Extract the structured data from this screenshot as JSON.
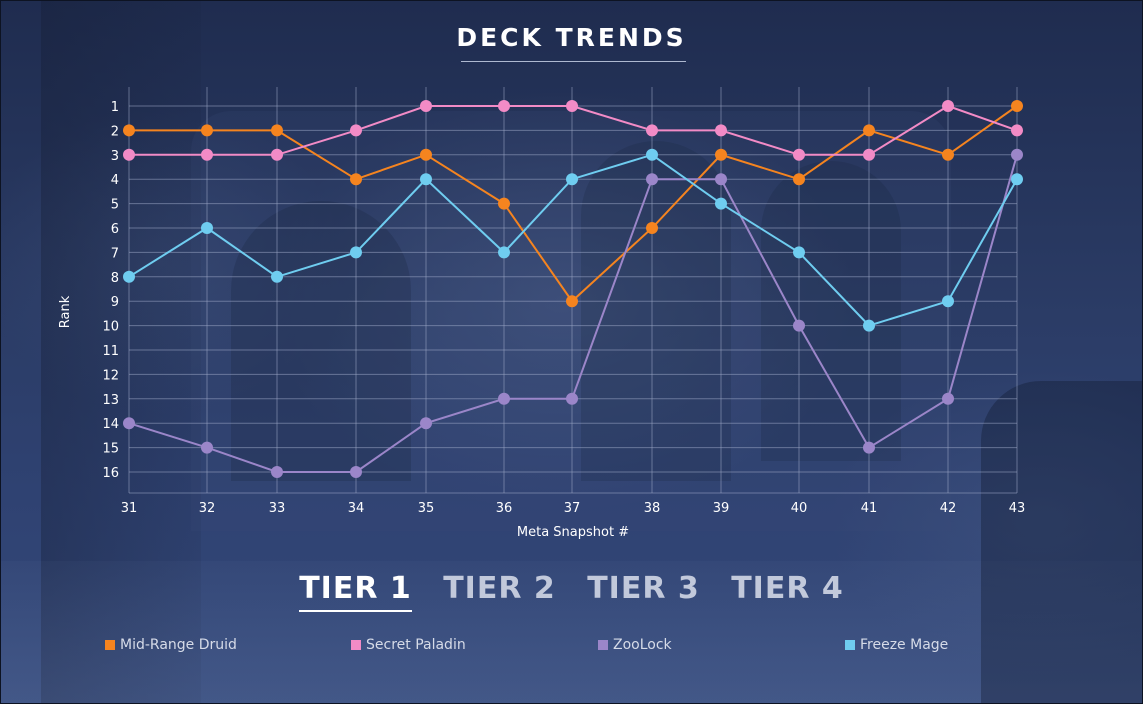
{
  "title": "DECK TRENDS",
  "tiers": [
    {
      "label": "TIER 1",
      "active": true
    },
    {
      "label": "TIER 2",
      "active": false
    },
    {
      "label": "TIER 3",
      "active": false
    },
    {
      "label": "TIER 4",
      "active": false
    }
  ],
  "colors": {
    "background": "#2b3c66",
    "grid": "#9aa6c4",
    "text": "#ffffff"
  },
  "chart_data": {
    "type": "line",
    "title": "DECK TRENDS",
    "xlabel": "Meta Snapshot #",
    "ylabel": "Rank",
    "x": [
      31,
      32,
      33,
      34,
      35,
      36,
      37,
      38,
      39,
      40,
      41,
      42,
      43
    ],
    "ylim": [
      1,
      16
    ],
    "y_inverted": true,
    "y_ticks": [
      1,
      2,
      3,
      4,
      5,
      6,
      7,
      8,
      9,
      10,
      11,
      12,
      13,
      14,
      15,
      16
    ],
    "grid": true,
    "legend_position": "bottom",
    "series": [
      {
        "name": "Mid-Range Druid",
        "color": "#f5841f",
        "values": [
          2,
          2,
          2,
          4,
          3,
          5,
          9,
          6,
          3,
          4,
          2,
          3,
          1
        ]
      },
      {
        "name": "Secret Paladin",
        "color": "#f28bc6",
        "values": [
          3,
          3,
          3,
          2,
          1,
          1,
          1,
          2,
          2,
          3,
          3,
          1,
          2
        ]
      },
      {
        "name": "ZooLock",
        "color": "#9b86c9",
        "values": [
          14,
          15,
          16,
          16,
          14,
          13,
          13,
          4,
          4,
          10,
          15,
          13,
          3
        ]
      },
      {
        "name": "Freeze Mage",
        "color": "#6fcdf0",
        "values": [
          8,
          6,
          8,
          7,
          4,
          7,
          4,
          3,
          5,
          7,
          10,
          9,
          4
        ]
      }
    ]
  }
}
